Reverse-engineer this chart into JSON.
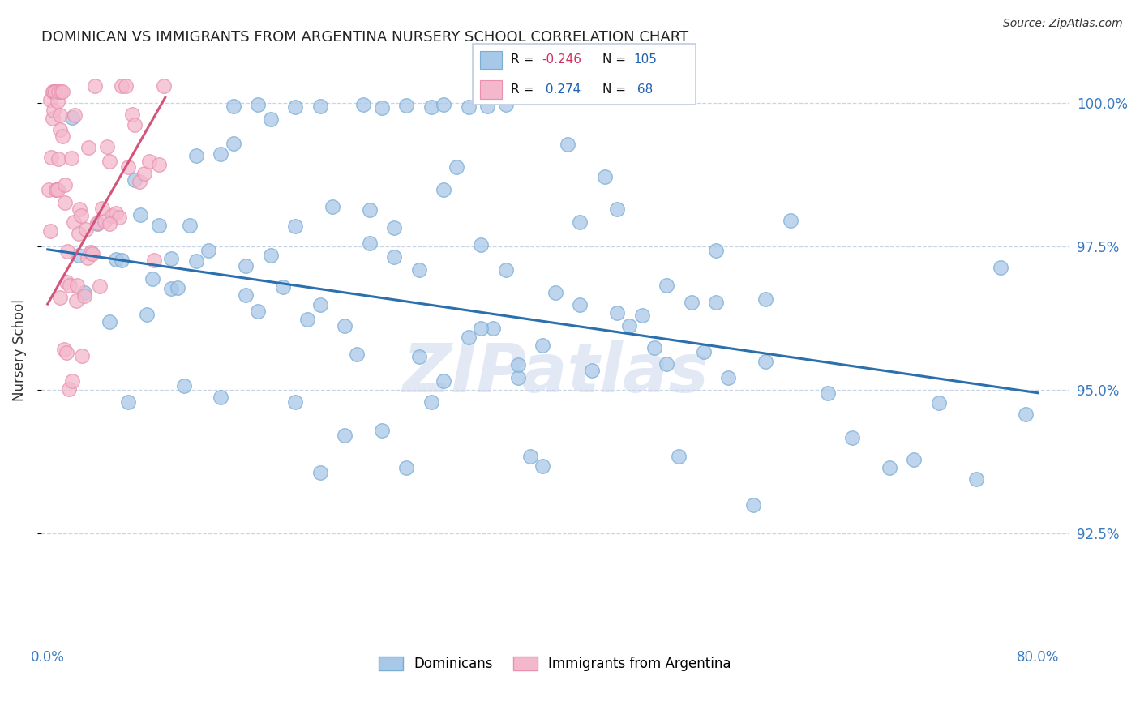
{
  "title": "DOMINICAN VS IMMIGRANTS FROM ARGENTINA NURSERY SCHOOL CORRELATION CHART",
  "source": "Source: ZipAtlas.com",
  "ylabel": "Nursery School",
  "ytick_values": [
    0.925,
    0.95,
    0.975,
    1.0
  ],
  "xmin": 0.0,
  "xmax": 0.8,
  "ymin": 0.906,
  "ymax": 1.008,
  "legend_r_blue": "-0.246",
  "legend_n_blue": "105",
  "legend_r_pink": "0.274",
  "legend_n_pink": "68",
  "blue_color": "#a8c8e8",
  "blue_edge_color": "#7aadd4",
  "pink_color": "#f4b8cc",
  "pink_edge_color": "#e890ae",
  "blue_line_color": "#2c6fad",
  "pink_line_color": "#d4547a",
  "watermark": "ZIPatlas",
  "title_color": "#222222",
  "axis_label_color": "#3a7abf",
  "ylabel_color": "#333333",
  "blue_trend_x0": 0.0,
  "blue_trend_y0": 0.9745,
  "blue_trend_x1": 0.8,
  "blue_trend_y1": 0.9495,
  "pink_trend_x0": 0.0,
  "pink_trend_y0": 0.965,
  "pink_trend_x1": 0.095,
  "pink_trend_y1": 1.001
}
